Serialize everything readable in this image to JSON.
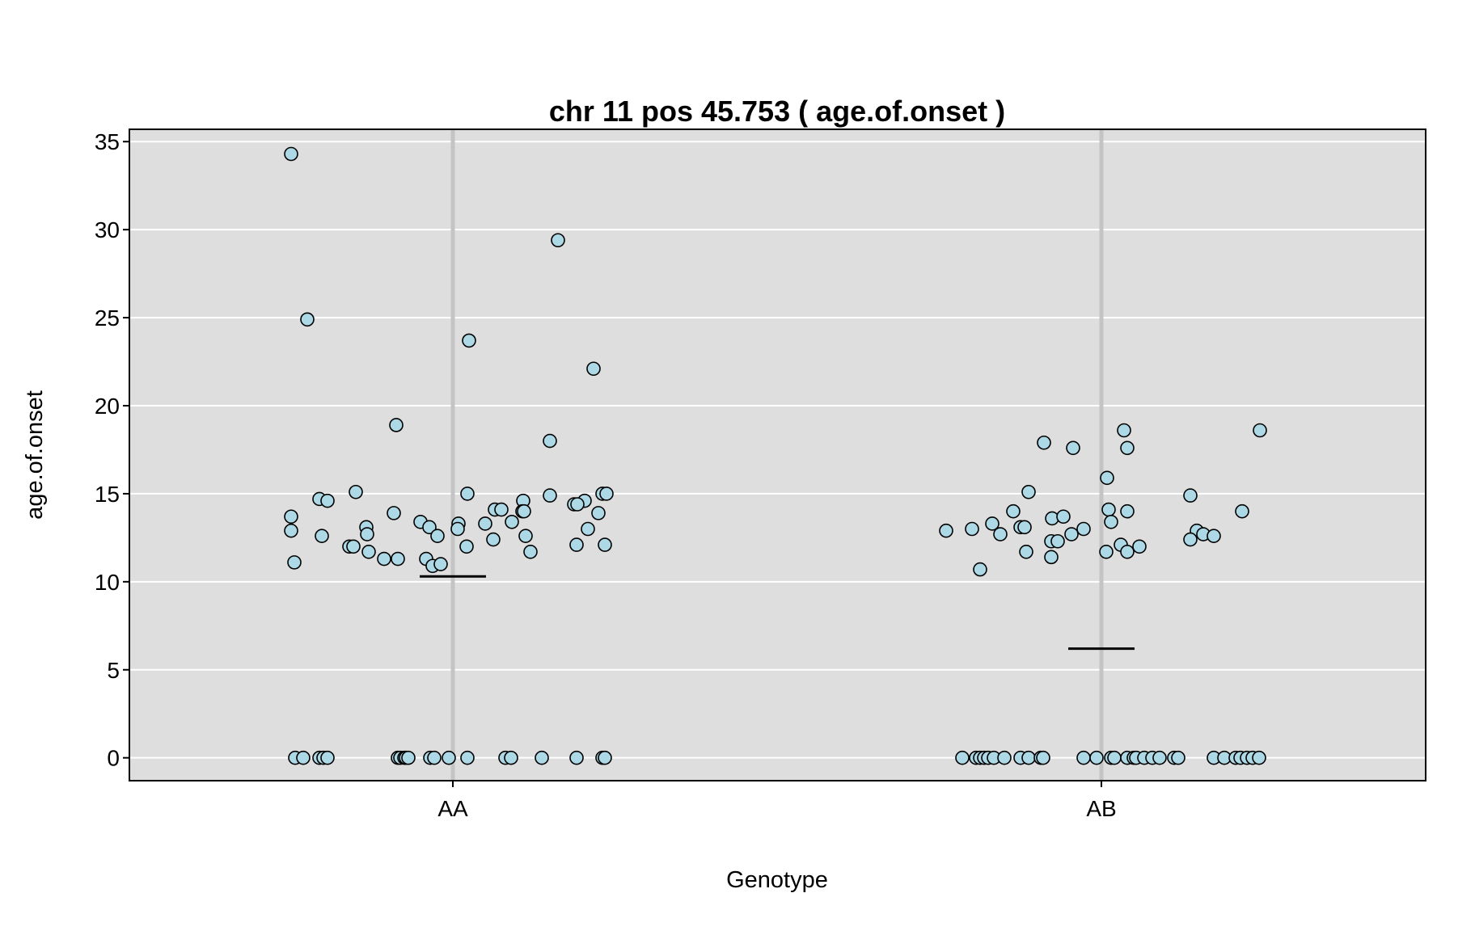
{
  "chart_data": {
    "type": "scatter",
    "title": "chr 11 pos 45.753 ( age.of.onset )",
    "xlabel": "Genotype",
    "ylabel": "age.of.onset",
    "categories": [
      "AA",
      "AB"
    ],
    "ylim": [
      -1.3,
      35.7
    ],
    "yticks": [
      0,
      5,
      10,
      15,
      20,
      25,
      30,
      35
    ],
    "grid": true,
    "background": "#dedede",
    "point_fill": "#add8e6",
    "point_stroke": "#000000",
    "means": [
      {
        "category": "AA",
        "value": 10.3
      },
      {
        "category": "AB",
        "value": 6.2
      }
    ],
    "series": [
      {
        "category": "AA",
        "points": [
          {
            "x": -0.2,
            "y": 34.3
          },
          {
            "x": 0.13,
            "y": 29.4
          },
          {
            "x": -0.18,
            "y": 24.9
          },
          {
            "x": 0.02,
            "y": 23.7
          },
          {
            "x": 0.174,
            "y": 22.1
          },
          {
            "x": -0.07,
            "y": 18.9
          },
          {
            "x": 0.12,
            "y": 18.0
          },
          {
            "x": -0.12,
            "y": 15.1
          },
          {
            "x": 0.018,
            "y": 15.0
          },
          {
            "x": 0.12,
            "y": 14.9
          },
          {
            "x": 0.185,
            "y": 15.0
          },
          {
            "x": 0.19,
            "y": 15.0
          },
          {
            "x": -0.165,
            "y": 14.7
          },
          {
            "x": -0.155,
            "y": 14.6
          },
          {
            "x": 0.087,
            "y": 14.6
          },
          {
            "x": 0.163,
            "y": 14.6
          },
          {
            "x": 0.15,
            "y": 14.4
          },
          {
            "x": 0.154,
            "y": 14.4
          },
          {
            "x": 0.052,
            "y": 14.1
          },
          {
            "x": 0.06,
            "y": 14.1
          },
          {
            "x": 0.086,
            "y": 14.0
          },
          {
            "x": 0.088,
            "y": 14.0
          },
          {
            "x": -0.2,
            "y": 13.7
          },
          {
            "x": -0.073,
            "y": 13.9
          },
          {
            "x": 0.18,
            "y": 13.9
          },
          {
            "x": -0.04,
            "y": 13.4
          },
          {
            "x": 0.007,
            "y": 13.3
          },
          {
            "x": 0.04,
            "y": 13.3
          },
          {
            "x": 0.073,
            "y": 13.4
          },
          {
            "x": -0.107,
            "y": 13.1
          },
          {
            "x": -0.029,
            "y": 13.1
          },
          {
            "x": 0.006,
            "y": 13.0
          },
          {
            "x": 0.167,
            "y": 13.0
          },
          {
            "x": -0.2,
            "y": 12.9
          },
          {
            "x": -0.162,
            "y": 12.6
          },
          {
            "x": -0.106,
            "y": 12.7
          },
          {
            "x": -0.019,
            "y": 12.6
          },
          {
            "x": 0.05,
            "y": 12.4
          },
          {
            "x": 0.09,
            "y": 12.6
          },
          {
            "x": -0.128,
            "y": 12.0
          },
          {
            "x": -0.123,
            "y": 12.0
          },
          {
            "x": 0.017,
            "y": 12.0
          },
          {
            "x": 0.153,
            "y": 12.1
          },
          {
            "x": 0.188,
            "y": 12.1
          },
          {
            "x": -0.104,
            "y": 11.7
          },
          {
            "x": 0.096,
            "y": 11.7
          },
          {
            "x": -0.196,
            "y": 11.1
          },
          {
            "x": -0.085,
            "y": 11.3
          },
          {
            "x": -0.068,
            "y": 11.3
          },
          {
            "x": -0.033,
            "y": 11.3
          },
          {
            "x": -0.025,
            "y": 10.9
          },
          {
            "x": -0.015,
            "y": 11.0
          },
          {
            "x": -0.195,
            "y": 0
          },
          {
            "x": -0.185,
            "y": 0
          },
          {
            "x": -0.165,
            "y": 0
          },
          {
            "x": -0.16,
            "y": 0
          },
          {
            "x": -0.155,
            "y": 0
          },
          {
            "x": -0.068,
            "y": 0
          },
          {
            "x": -0.065,
            "y": 0
          },
          {
            "x": -0.06,
            "y": 0
          },
          {
            "x": -0.058,
            "y": 0
          },
          {
            "x": -0.055,
            "y": 0
          },
          {
            "x": -0.028,
            "y": 0
          },
          {
            "x": -0.023,
            "y": 0
          },
          {
            "x": -0.005,
            "y": 0
          },
          {
            "x": 0.018,
            "y": 0
          },
          {
            "x": 0.065,
            "y": 0
          },
          {
            "x": 0.072,
            "y": 0
          },
          {
            "x": 0.11,
            "y": 0
          },
          {
            "x": 0.153,
            "y": 0
          },
          {
            "x": 0.185,
            "y": 0
          },
          {
            "x": 0.188,
            "y": 0
          }
        ]
      },
      {
        "category": "AB",
        "points": [
          {
            "x": 0.028,
            "y": 18.6
          },
          {
            "x": 0.196,
            "y": 18.6
          },
          {
            "x": -0.071,
            "y": 17.9
          },
          {
            "x": -0.035,
            "y": 17.6
          },
          {
            "x": 0.032,
            "y": 17.6
          },
          {
            "x": 0.007,
            "y": 15.9
          },
          {
            "x": -0.09,
            "y": 15.1
          },
          {
            "x": 0.11,
            "y": 14.9
          },
          {
            "x": -0.109,
            "y": 14.0
          },
          {
            "x": 0.009,
            "y": 14.1
          },
          {
            "x": 0.032,
            "y": 14.0
          },
          {
            "x": 0.174,
            "y": 14.0
          },
          {
            "x": -0.061,
            "y": 13.6
          },
          {
            "x": -0.047,
            "y": 13.7
          },
          {
            "x": 0.012,
            "y": 13.4
          },
          {
            "x": -0.135,
            "y": 13.3
          },
          {
            "x": -0.1,
            "y": 13.1
          },
          {
            "x": -0.095,
            "y": 13.1
          },
          {
            "x": -0.192,
            "y": 12.9
          },
          {
            "x": -0.16,
            "y": 13.0
          },
          {
            "x": -0.022,
            "y": 13.0
          },
          {
            "x": 0.118,
            "y": 12.9
          },
          {
            "x": -0.125,
            "y": 12.7
          },
          {
            "x": -0.037,
            "y": 12.7
          },
          {
            "x": 0.126,
            "y": 12.7
          },
          {
            "x": 0.139,
            "y": 12.6
          },
          {
            "x": -0.062,
            "y": 12.3
          },
          {
            "x": -0.054,
            "y": 12.3
          },
          {
            "x": 0.11,
            "y": 12.4
          },
          {
            "x": 0.024,
            "y": 12.1
          },
          {
            "x": 0.047,
            "y": 12.0
          },
          {
            "x": -0.093,
            "y": 11.7
          },
          {
            "x": 0.006,
            "y": 11.7
          },
          {
            "x": 0.032,
            "y": 11.7
          },
          {
            "x": -0.062,
            "y": 11.4
          },
          {
            "x": -0.15,
            "y": 10.7
          },
          {
            "x": -0.172,
            "y": 0
          },
          {
            "x": -0.155,
            "y": 0
          },
          {
            "x": -0.15,
            "y": 0
          },
          {
            "x": -0.145,
            "y": 0
          },
          {
            "x": -0.14,
            "y": 0
          },
          {
            "x": -0.133,
            "y": 0
          },
          {
            "x": -0.12,
            "y": 0
          },
          {
            "x": -0.1,
            "y": 0
          },
          {
            "x": -0.09,
            "y": 0
          },
          {
            "x": -0.075,
            "y": 0
          },
          {
            "x": -0.072,
            "y": 0
          },
          {
            "x": -0.022,
            "y": 0
          },
          {
            "x": -0.006,
            "y": 0
          },
          {
            "x": 0.012,
            "y": 0
          },
          {
            "x": 0.016,
            "y": 0
          },
          {
            "x": 0.032,
            "y": 0
          },
          {
            "x": 0.04,
            "y": 0
          },
          {
            "x": 0.043,
            "y": 0
          },
          {
            "x": 0.053,
            "y": 0
          },
          {
            "x": 0.063,
            "y": 0
          },
          {
            "x": 0.072,
            "y": 0
          },
          {
            "x": 0.09,
            "y": 0
          },
          {
            "x": 0.095,
            "y": 0
          },
          {
            "x": 0.139,
            "y": 0
          },
          {
            "x": 0.152,
            "y": 0
          },
          {
            "x": 0.166,
            "y": 0
          },
          {
            "x": 0.172,
            "y": 0
          },
          {
            "x": 0.18,
            "y": 0
          },
          {
            "x": 0.187,
            "y": 0
          },
          {
            "x": 0.195,
            "y": 0
          }
        ]
      }
    ]
  }
}
